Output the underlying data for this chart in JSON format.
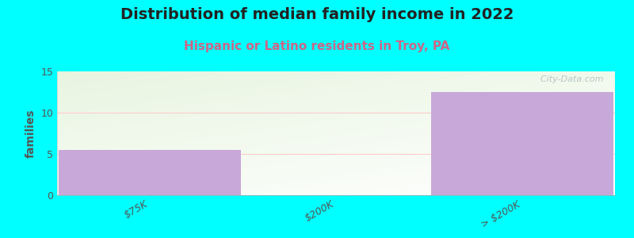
{
  "title": "Distribution of median family income in 2022",
  "subtitle": "Hispanic or Latino residents in Troy, PA",
  "categories": [
    "$75K",
    "$200K",
    "> $200K"
  ],
  "values": [
    5.5,
    0,
    12.5
  ],
  "bar_color": "#c8a8d8",
  "bar_edge_color": "#b898c8",
  "background_color": "#00ffff",
  "ylabel": "families",
  "ylim": [
    0,
    15
  ],
  "yticks": [
    0,
    5,
    10,
    15
  ],
  "title_fontsize": 14,
  "subtitle_fontsize": 11,
  "subtitle_color": "#cc6688",
  "watermark": "  City-Data.com",
  "watermark_color": "#aabbbb",
  "grid_color": "#ffcccc",
  "tick_color": "#555555",
  "title_color": "#222222"
}
